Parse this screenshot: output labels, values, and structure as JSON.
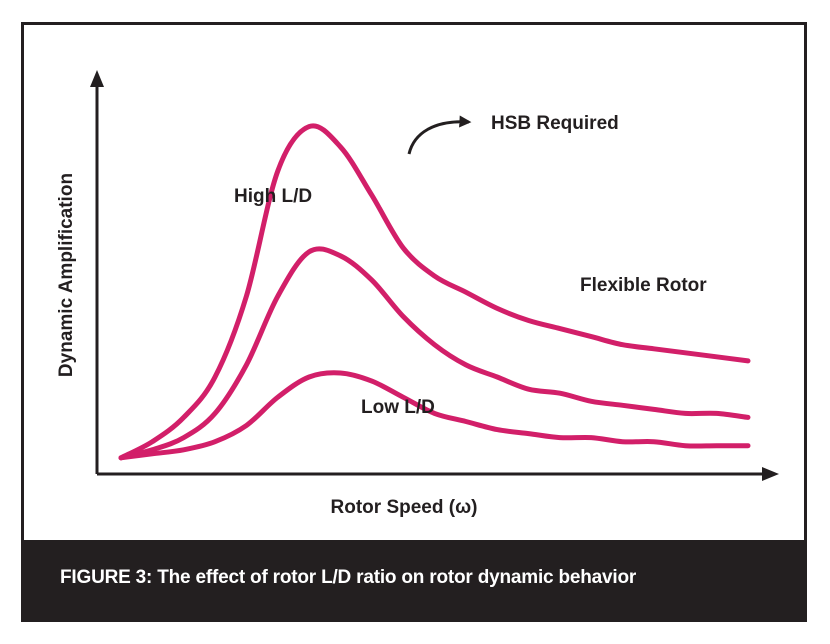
{
  "chart_data": {
    "type": "line",
    "title": "",
    "xlabel": "Rotor Speed (ω)",
    "ylabel": "Dynamic Amplification",
    "grid": false,
    "legend": "none",
    "x": [
      0,
      0.05,
      0.1,
      0.15,
      0.2,
      0.25,
      0.3,
      0.35,
      0.4,
      0.45,
      0.5,
      0.55,
      0.6,
      0.65,
      0.7,
      0.75,
      0.8,
      0.85,
      0.9,
      0.95,
      1.0
    ],
    "xlim": [
      0,
      1.05
    ],
    "ylim": [
      0,
      1.0
    ],
    "series": [
      {
        "name": "High L/D",
        "values": [
          0.04,
          0.08,
          0.14,
          0.24,
          0.44,
          0.75,
          0.86,
          0.81,
          0.69,
          0.56,
          0.49,
          0.45,
          0.41,
          0.38,
          0.36,
          0.34,
          0.32,
          0.31,
          0.3,
          0.29,
          0.28
        ]
      },
      {
        "name": "",
        "values": [
          0.04,
          0.06,
          0.09,
          0.15,
          0.27,
          0.44,
          0.55,
          0.54,
          0.48,
          0.39,
          0.32,
          0.27,
          0.24,
          0.21,
          0.2,
          0.18,
          0.17,
          0.16,
          0.15,
          0.15,
          0.14
        ]
      },
      {
        "name": "Low L/D",
        "values": [
          0.04,
          0.05,
          0.06,
          0.08,
          0.12,
          0.19,
          0.24,
          0.25,
          0.23,
          0.19,
          0.15,
          0.13,
          0.11,
          0.1,
          0.09,
          0.09,
          0.08,
          0.08,
          0.07,
          0.07,
          0.07
        ]
      }
    ],
    "annotations": {
      "high": "High L/D",
      "low": "Low L/D",
      "flexible": "Flexible Rotor",
      "hsb": "HSB Required"
    },
    "line_color": "#d21f69"
  },
  "caption": "FIGURE 3: The effect of rotor L/D ratio on rotor dynamic behavior"
}
